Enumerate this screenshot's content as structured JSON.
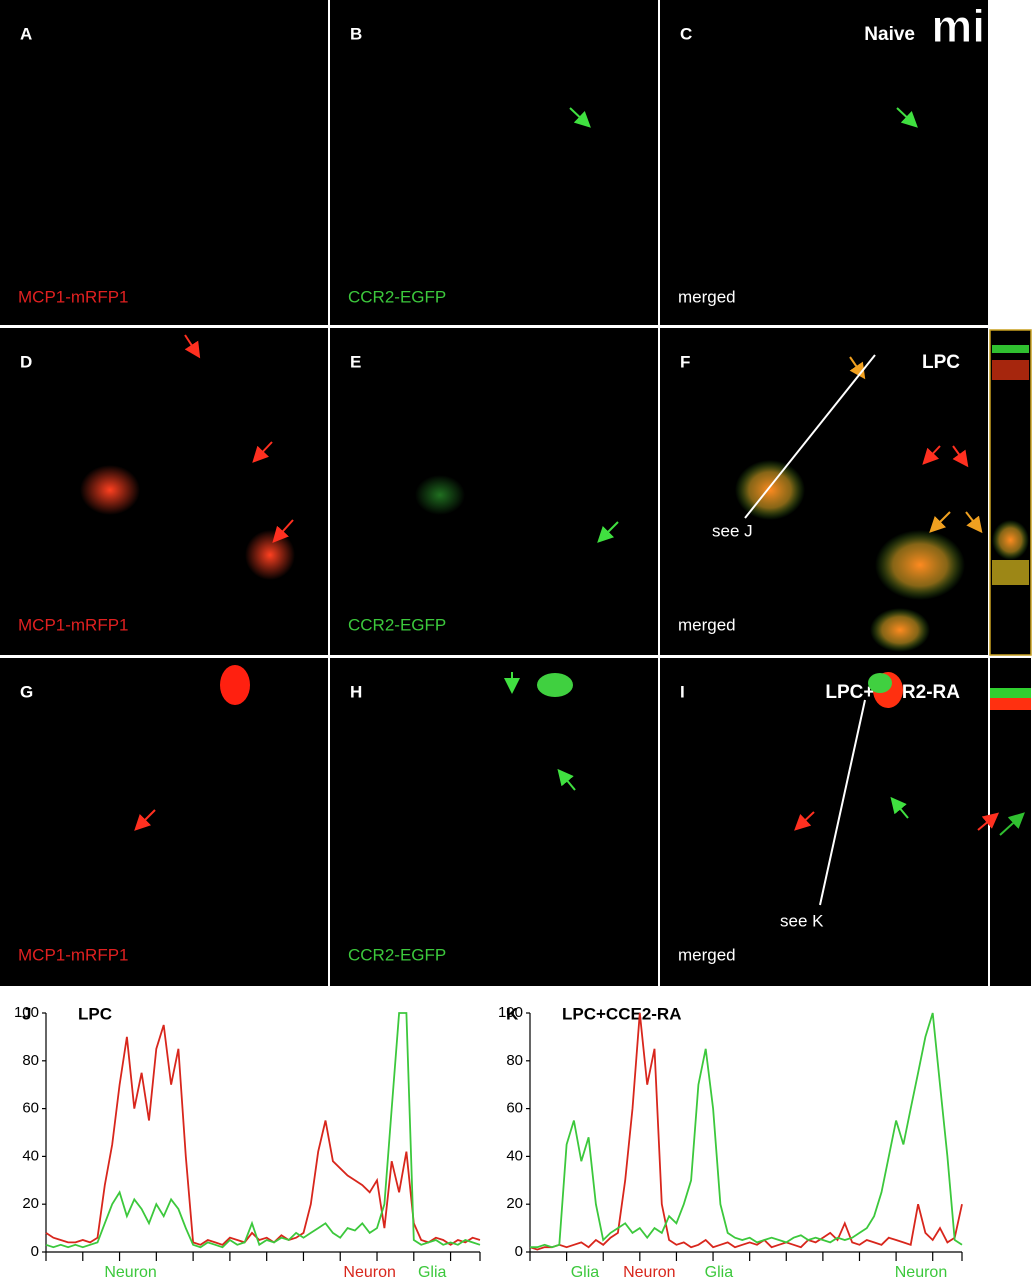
{
  "panels": [
    {
      "letter": "A",
      "label": "MCP1-mRFP1"
    },
    {
      "letter": "B",
      "label": "CCR2-EGFP"
    },
    {
      "letter": "C",
      "label": "merged",
      "title": "Naive"
    },
    {
      "letter": "D",
      "label": "MCP1-mRFP1"
    },
    {
      "letter": "E",
      "label": "CCR2-EGFP"
    },
    {
      "letter": "F",
      "label": "merged",
      "title": "LPC",
      "note": "see J"
    },
    {
      "letter": "G",
      "label": "MCP1-mRFP1"
    },
    {
      "letter": "H",
      "label": "CCR2-EGFP"
    },
    {
      "letter": "I",
      "label": "merged",
      "title": "LPC+CCR2-RA",
      "note": "see K"
    }
  ],
  "logo": "mi",
  "chart_data": [
    {
      "type": "line",
      "panel": "J",
      "title": "LPC",
      "xlim": [
        0,
        59
      ],
      "xticks": [
        0,
        5,
        10,
        15,
        20,
        25,
        30,
        35,
        40,
        45,
        50,
        55,
        59
      ],
      "ylim": [
        0,
        100
      ],
      "yticks": [
        0,
        20,
        40,
        60,
        80,
        100
      ],
      "series": [
        {
          "color": "#d8261c",
          "values": [
            8,
            6,
            5,
            4,
            4,
            5,
            4,
            6,
            28,
            45,
            70,
            90,
            60,
            75,
            55,
            85,
            95,
            70,
            85,
            40,
            4,
            3,
            5,
            4,
            3,
            6,
            5,
            4,
            8,
            5,
            6,
            4,
            7,
            5,
            6,
            8,
            20,
            42,
            55,
            38,
            35,
            32,
            30,
            28,
            25,
            30,
            10,
            38,
            25,
            42,
            12,
            5,
            4,
            6,
            5,
            3,
            5,
            4,
            6,
            5
          ]
        },
        {
          "color": "#3cc83c",
          "values": [
            3,
            2,
            3,
            2,
            3,
            2,
            3,
            4,
            12,
            20,
            25,
            15,
            22,
            18,
            12,
            20,
            15,
            22,
            18,
            10,
            3,
            2,
            4,
            3,
            2,
            5,
            3,
            4,
            12,
            3,
            5,
            4,
            6,
            5,
            8,
            6,
            8,
            10,
            12,
            8,
            6,
            10,
            9,
            12,
            8,
            10,
            20,
            60,
            100,
            100,
            5,
            3,
            4,
            5,
            3,
            4,
            3,
            5,
            4,
            3
          ]
        }
      ],
      "annotations": [
        {
          "text": "Neuron",
          "x": 11.5,
          "color": "#3cc83c"
        },
        {
          "text": "Neuron",
          "x": 44,
          "color": "#d8261c"
        },
        {
          "text": "Glia",
          "x": 52.5,
          "color": "#3cc83c"
        }
      ]
    },
    {
      "type": "line",
      "panel": "K",
      "title": "LPC+CCE2-RA",
      "xlim": [
        0,
        59
      ],
      "xticks": [
        0,
        5,
        10,
        15,
        20,
        25,
        30,
        35,
        40,
        45,
        50,
        55,
        59
      ],
      "ylim": [
        0,
        100
      ],
      "yticks": [
        0,
        20,
        40,
        60,
        80,
        100
      ],
      "series": [
        {
          "color": "#d8261c",
          "values": [
            2,
            1,
            2,
            2,
            3,
            2,
            3,
            4,
            2,
            5,
            3,
            6,
            8,
            30,
            60,
            100,
            70,
            85,
            20,
            5,
            3,
            4,
            2,
            3,
            5,
            2,
            3,
            4,
            2,
            3,
            4,
            3,
            5,
            2,
            3,
            4,
            3,
            2,
            5,
            4,
            6,
            8,
            5,
            12,
            4,
            3,
            5,
            4,
            3,
            6,
            5,
            4,
            3,
            20,
            8,
            5,
            10,
            4,
            6,
            20
          ]
        },
        {
          "color": "#3cc83c",
          "values": [
            2,
            2,
            3,
            2,
            3,
            45,
            55,
            38,
            48,
            20,
            5,
            8,
            10,
            12,
            8,
            10,
            6,
            10,
            8,
            15,
            12,
            20,
            30,
            70,
            85,
            60,
            20,
            8,
            6,
            5,
            6,
            4,
            5,
            6,
            5,
            4,
            6,
            7,
            5,
            6,
            5,
            4,
            6,
            5,
            6,
            8,
            10,
            15,
            25,
            40,
            55,
            45,
            60,
            75,
            90,
            100,
            70,
            40,
            5,
            3
          ]
        }
      ],
      "annotations": [
        {
          "text": "Glia",
          "x": 7.5,
          "color": "#3cc83c"
        },
        {
          "text": "Neuron",
          "x": 16.3,
          "color": "#d8261c"
        },
        {
          "text": "Glia",
          "x": 25.8,
          "color": "#3cc83c"
        },
        {
          "text": "Neuron",
          "x": 53.4,
          "color": "#3cc83c"
        }
      ]
    }
  ]
}
